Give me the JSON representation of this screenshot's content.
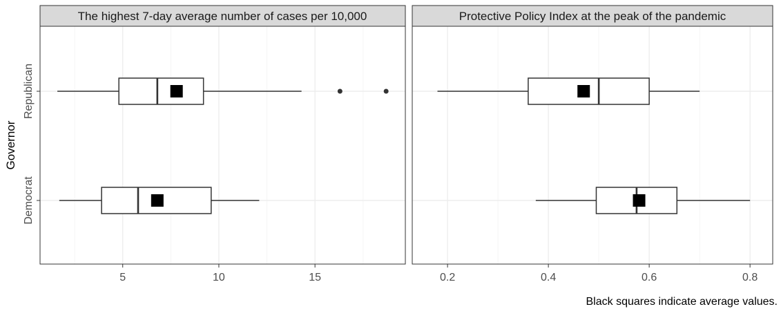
{
  "y_axis_title": "Governor",
  "caption": "Black squares indicate average values.",
  "colors": {
    "panel_border": "#333333",
    "strip_fill": "#d9d9d9",
    "grid_major": "#ebebeb",
    "grid_minor": "#f5f5f5",
    "box_line": "#333333",
    "mean_marker": "#000000"
  },
  "chart_data": [
    {
      "type": "box",
      "title": "The highest 7-day average number of cases per 10,000",
      "xlim": [
        0.7,
        19.7
      ],
      "x_ticks": [
        5,
        10,
        15
      ],
      "x_tick_labels": [
        "5",
        "10",
        "15"
      ],
      "grid": true,
      "categories": [
        "Republican",
        "Democrat"
      ],
      "boxes": [
        {
          "category": "Republican",
          "whisker_low": 1.6,
          "q1": 4.8,
          "median": 6.8,
          "q3": 9.2,
          "whisker_high": 14.3,
          "mean": 7.8,
          "outliers": [
            16.3,
            18.7
          ]
        },
        {
          "category": "Democrat",
          "whisker_low": 1.7,
          "q1": 3.9,
          "median": 5.8,
          "q3": 9.6,
          "whisker_high": 12.1,
          "mean": 6.8,
          "outliers": []
        }
      ]
    },
    {
      "type": "box",
      "title": "Protective Policy Index at the peak of the pandemic",
      "xlim": [
        0.13,
        0.845
      ],
      "x_ticks": [
        0.2,
        0.4,
        0.6,
        0.8
      ],
      "x_tick_labels": [
        "0.2",
        "0.4",
        "0.6",
        "0.8"
      ],
      "grid": true,
      "categories": [
        "Republican",
        "Democrat"
      ],
      "boxes": [
        {
          "category": "Republican",
          "whisker_low": 0.18,
          "q1": 0.36,
          "median": 0.5,
          "q3": 0.6,
          "whisker_high": 0.7,
          "mean": 0.47,
          "outliers": []
        },
        {
          "category": "Democrat",
          "whisker_low": 0.375,
          "q1": 0.495,
          "median": 0.575,
          "q3": 0.655,
          "whisker_high": 0.8,
          "mean": 0.58,
          "outliers": []
        }
      ]
    }
  ]
}
